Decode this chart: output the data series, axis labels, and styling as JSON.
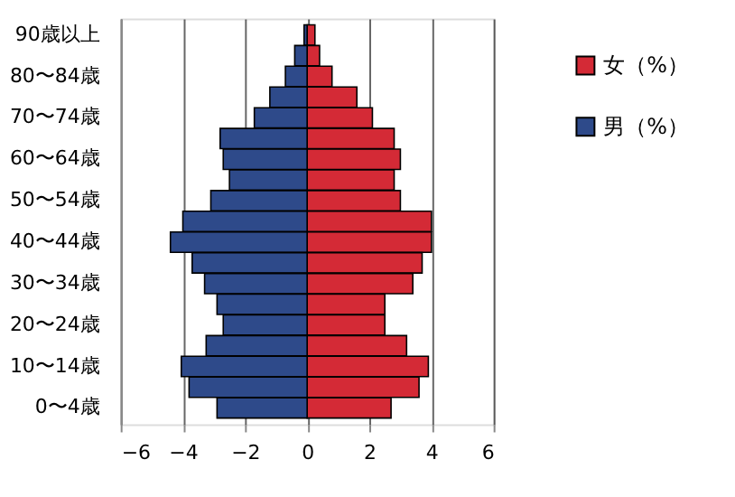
{
  "chart_data": {
    "type": "bar",
    "orientation": "horizontal",
    "stacked": true,
    "categories": [
      "90歳以上",
      null,
      "80〜84歳",
      null,
      "70〜74歳",
      null,
      "60〜64歳",
      null,
      "50〜54歳",
      null,
      "40〜44歳",
      null,
      "30〜34歳",
      null,
      "20〜24歳",
      null,
      "10〜14歳",
      null,
      "0〜4歳"
    ],
    "series": [
      {
        "name": "女（%）",
        "color": "#d42a36",
        "values": [
          0.25,
          0.4,
          0.8,
          1.6,
          2.1,
          2.8,
          3.0,
          2.8,
          3.0,
          4.0,
          4.0,
          3.7,
          3.4,
          2.5,
          2.5,
          3.2,
          3.9,
          3.6,
          2.7
        ]
      },
      {
        "name": "男（%）",
        "color": "#2e4a8a",
        "values": [
          -0.1,
          -0.4,
          -0.7,
          -1.2,
          -1.7,
          -2.8,
          -2.7,
          -2.5,
          -3.1,
          -4.0,
          -4.4,
          -3.7,
          -3.3,
          -2.9,
          -2.7,
          -3.25,
          -4.05,
          -3.8,
          -2.9
        ]
      }
    ],
    "xlim": [
      -6,
      6
    ],
    "xticks": [
      -6,
      -4,
      -2,
      0,
      2,
      4,
      6
    ],
    "grid": "x",
    "legend": "top right"
  }
}
